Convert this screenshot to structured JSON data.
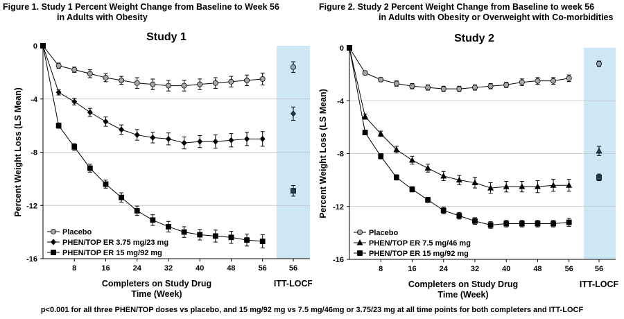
{
  "footnote": "p<0.001 for all three PHEN/TOP doses vs placebo, and 15 mg/92 mg vs 7.5 mg/46mg or 3.75/23 mg at all time points for both completers and ITT-LOCF",
  "figures": [
    {
      "label": "Figure 1.",
      "title_line1": "Study 1 Percent Weight Change from Baseline to Week 56",
      "title_line2": "in Adults with Obesity"
    },
    {
      "label": "Figure 2.",
      "title_line1": "Study 2 Percent Weight Change from Baseline to week 56",
      "title_line2": "in Adults with Obesity or Overweight with Co-morbidities"
    }
  ],
  "chart_data": [
    {
      "type": "line",
      "title": "Study 1",
      "xlabel": "Completers on Study Drug\nTime (Week)",
      "ylabel": "Percent Weight Loss (LS Mean)",
      "ylim": [
        -16,
        0
      ],
      "yticks": [
        0,
        -4,
        -8,
        -12,
        -16
      ],
      "xlim": [
        0,
        58
      ],
      "xticks": [
        8,
        16,
        24,
        32,
        40,
        48,
        56
      ],
      "grid": true,
      "itt_label": "ITT-LOCF",
      "itt_tick": "56",
      "legend_position": "bottom-left",
      "series": [
        {
          "name": "Placebo",
          "marker": "circle",
          "fill": "#a6a6a6",
          "x": [
            0,
            4,
            8,
            12,
            16,
            20,
            24,
            28,
            32,
            36,
            40,
            44,
            48,
            52,
            56
          ],
          "y": [
            0,
            -1.5,
            -1.8,
            -2.1,
            -2.4,
            -2.6,
            -2.8,
            -2.9,
            -3.0,
            -3.0,
            -2.9,
            -2.8,
            -2.7,
            -2.6,
            -2.5
          ],
          "err": [
            0,
            0.2,
            0.2,
            0.3,
            0.3,
            0.3,
            0.4,
            0.4,
            0.4,
            0.4,
            0.4,
            0.4,
            0.4,
            0.4,
            0.45
          ],
          "itt": -1.6,
          "itt_err": 0.4
        },
        {
          "name": "PHEN/TOP ER 3.75 mg/23 mg",
          "marker": "diamond",
          "fill": "#000000",
          "x": [
            0,
            4,
            8,
            12,
            16,
            20,
            24,
            28,
            32,
            36,
            40,
            44,
            48,
            52,
            56
          ],
          "y": [
            0,
            -3.5,
            -4.2,
            -5.0,
            -5.7,
            -6.3,
            -6.7,
            -6.9,
            -7.0,
            -7.3,
            -7.2,
            -7.2,
            -7.1,
            -7.0,
            -7.0
          ],
          "err": [
            0,
            0.2,
            0.25,
            0.3,
            0.35,
            0.35,
            0.4,
            0.4,
            0.45,
            0.45,
            0.45,
            0.5,
            0.5,
            0.5,
            0.55
          ],
          "itt": -5.1,
          "itt_err": 0.5
        },
        {
          "name": "PHEN/TOP ER 15 mg/92 mg",
          "marker": "square",
          "fill": "#000000",
          "x": [
            0,
            4,
            8,
            12,
            16,
            20,
            24,
            28,
            32,
            36,
            40,
            44,
            48,
            52,
            56
          ],
          "y": [
            0,
            -6.0,
            -7.6,
            -9.2,
            -10.4,
            -11.4,
            -12.4,
            -13.1,
            -13.6,
            -14.0,
            -14.2,
            -14.3,
            -14.4,
            -14.6,
            -14.7
          ],
          "err": [
            0,
            0.2,
            0.25,
            0.3,
            0.3,
            0.35,
            0.35,
            0.4,
            0.4,
            0.4,
            0.4,
            0.45,
            0.45,
            0.45,
            0.5
          ],
          "itt": -10.9,
          "itt_err": 0.4
        }
      ]
    },
    {
      "type": "line",
      "title": "Study 2",
      "xlabel": "Completers on Study Drug\nTime (Week)",
      "ylabel": "Percent Weight Loss (LS Mean)",
      "ylim": [
        -16,
        0
      ],
      "yticks": [
        0,
        -4,
        -8,
        -12,
        -16
      ],
      "xlim": [
        0,
        58
      ],
      "xticks": [
        8,
        16,
        24,
        32,
        40,
        48,
        56
      ],
      "grid": true,
      "itt_label": "ITT-LOCF",
      "itt_tick": "56",
      "legend_position": "bottom-left",
      "series": [
        {
          "name": "Placebo",
          "marker": "circle",
          "fill": "#a6a6a6",
          "x": [
            0,
            4,
            8,
            12,
            16,
            20,
            24,
            28,
            32,
            36,
            40,
            44,
            48,
            52,
            56
          ],
          "y": [
            0,
            -1.9,
            -2.4,
            -2.7,
            -2.9,
            -3.0,
            -3.1,
            -3.1,
            -3.0,
            -2.9,
            -2.8,
            -2.6,
            -2.5,
            -2.5,
            -2.3
          ],
          "err": [
            0,
            0.15,
            0.15,
            0.2,
            0.2,
            0.2,
            0.2,
            0.2,
            0.2,
            0.2,
            0.2,
            0.25,
            0.25,
            0.25,
            0.25
          ],
          "itt": -1.2,
          "itt_err": 0.2
        },
        {
          "name": "PHEN/TOP ER 7.5 mg/46 mg",
          "marker": "triangle",
          "fill": "#000000",
          "x": [
            0,
            4,
            8,
            12,
            16,
            20,
            24,
            28,
            32,
            36,
            40,
            44,
            48,
            52,
            56
          ],
          "y": [
            0,
            -5.2,
            -6.5,
            -7.7,
            -8.5,
            -9.1,
            -9.7,
            -10.0,
            -10.2,
            -10.6,
            -10.5,
            -10.5,
            -10.5,
            -10.4,
            -10.4
          ],
          "err": [
            0,
            0.2,
            0.2,
            0.25,
            0.3,
            0.3,
            0.35,
            0.35,
            0.4,
            0.4,
            0.4,
            0.4,
            0.45,
            0.45,
            0.45
          ],
          "itt": -7.8,
          "itt_err": 0.35
        },
        {
          "name": "PHEN/TOP ER 15 mg/92 mg",
          "marker": "square",
          "fill": "#000000",
          "x": [
            0,
            4,
            8,
            12,
            16,
            20,
            24,
            28,
            32,
            36,
            40,
            44,
            48,
            52,
            56
          ],
          "y": [
            0,
            -6.4,
            -8.2,
            -9.8,
            -10.7,
            -11.5,
            -12.3,
            -12.7,
            -13.1,
            -13.4,
            -13.3,
            -13.3,
            -13.3,
            -13.3,
            -13.2
          ],
          "err": [
            0,
            0.15,
            0.2,
            0.2,
            0.2,
            0.2,
            0.25,
            0.25,
            0.25,
            0.25,
            0.25,
            0.25,
            0.25,
            0.25,
            0.3
          ],
          "itt": -9.8,
          "itt_err": 0.25
        }
      ]
    }
  ]
}
